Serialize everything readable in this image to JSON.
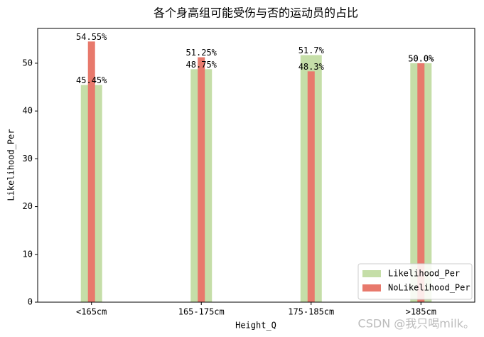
{
  "chart_data": {
    "type": "bar",
    "title": "各个身高组可能受伤与否的运动员的占比",
    "x_label": "Height_Q",
    "y_label": "Likelihood_Per",
    "categories": [
      "<165cm",
      "165-175cm",
      "175-185cm",
      ">185cm"
    ],
    "series": [
      {
        "name": "Likelihood_Per",
        "color": "#c5dea8",
        "values": [
          45.45,
          48.75,
          51.7,
          50.0
        ],
        "value_labels": [
          "45.45%",
          "48.75%",
          "51.7%",
          "50.0%"
        ]
      },
      {
        "name": "NoLikelihood_Per",
        "color": "#e8796c",
        "values": [
          54.55,
          51.25,
          48.3,
          50.0
        ],
        "value_labels": [
          "54.55%",
          "51.25%",
          "48.3%",
          "50.0%"
        ]
      }
    ],
    "ylim": [
      0,
      57.28
    ],
    "yticks": [
      0,
      10,
      20,
      30,
      40,
      50
    ],
    "grid": false,
    "legend": "lower right"
  },
  "watermark": "CSDN @我只喝milk。"
}
